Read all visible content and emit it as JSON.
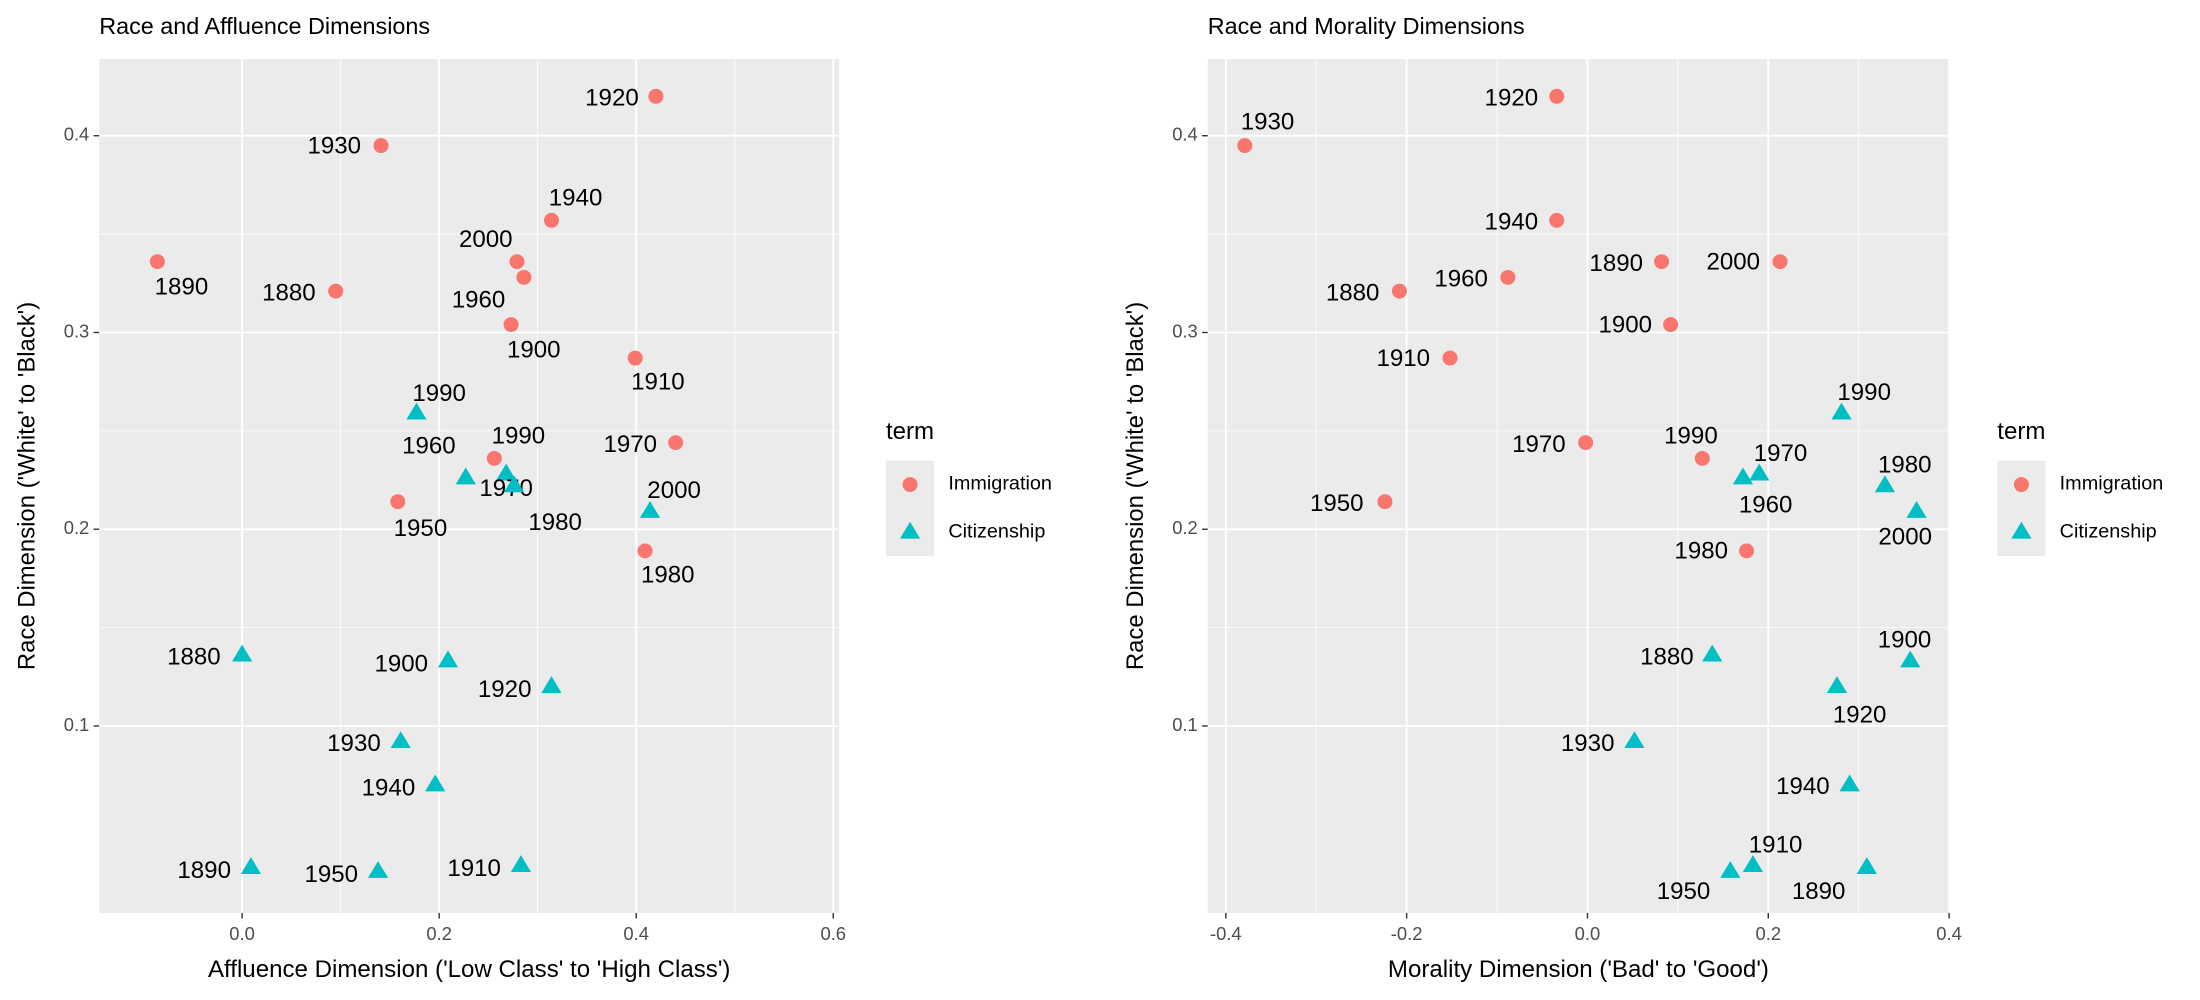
{
  "chart_data": [
    {
      "type": "scatter",
      "title": "Race and Affluence Dimensions",
      "x_label": "Affluence Dimension ('Low Class' to 'High Class')",
      "y_label": "Race Dimension ('White' to 'Black')",
      "xlim": [
        -0.145,
        0.606
      ],
      "ylim": [
        0.005,
        0.439
      ],
      "xticks": [
        {
          "value": 0,
          "label": "0.0"
        },
        0.2,
        0.4,
        0.6
      ],
      "yticks": [
        0.1,
        0.2,
        0.3,
        0.4
      ],
      "grid": true,
      "legend_title": "term",
      "series": [
        {
          "name": "Immigration",
          "color": "#F8766D",
          "marker": "circle",
          "labels": [
            "1920",
            "1930",
            "1940",
            "2000",
            "1890",
            "1880",
            "1960",
            "1900",
            "1910",
            "1970",
            "1990",
            "1950",
            "1980"
          ],
          "x": [
            0.42,
            0.141,
            0.314,
            0.279,
            -0.086,
            0.095,
            0.286,
            0.273,
            0.399,
            0.44,
            0.256,
            0.158,
            0.409
          ],
          "values": [
            0.42,
            0.395,
            0.357,
            0.336,
            0.336,
            0.321,
            0.328,
            0.304,
            0.287,
            0.244,
            0.236,
            0.214,
            0.189
          ]
        },
        {
          "name": "Citizenship",
          "color": "#00BFC4",
          "marker": "triangle",
          "labels": [
            "1990",
            "1960",
            "1970",
            "1980",
            "2000",
            "1880",
            "1900",
            "1920",
            "1930",
            "1940",
            "1890",
            "1950",
            "1910"
          ],
          "x": [
            0.177,
            0.227,
            0.268,
            0.276,
            0.414,
            0.0,
            0.209,
            0.314,
            0.161,
            0.196,
            0.009,
            0.138,
            0.283
          ],
          "values": [
            0.259,
            0.226,
            0.228,
            0.222,
            0.209,
            0.136,
            0.133,
            0.12,
            0.092,
            0.07,
            0.028,
            0.026,
            0.029
          ]
        }
      ]
    },
    {
      "type": "scatter",
      "title": "Race and Morality Dimensions",
      "x_label": "Morality Dimension ('Bad' to 'Good')",
      "y_label": "Race Dimension ('White' to 'Black')",
      "xlim": [
        -0.42,
        0.4
      ],
      "ylim": [
        0.005,
        0.439
      ],
      "xticks": [
        -0.4,
        -0.2,
        {
          "value": 0,
          "label": "0.0"
        },
        0.2,
        0.4
      ],
      "yticks": [
        0.1,
        0.2,
        0.3,
        0.4
      ],
      "grid": true,
      "legend_title": "term",
      "series": [
        {
          "name": "Immigration",
          "color": "#F8766D",
          "marker": "circle",
          "labels": [
            "1930",
            "1920",
            "1940",
            "1960",
            "1880",
            "1890",
            "2000",
            "1900",
            "1910",
            "1970",
            "1990",
            "1950",
            "1980"
          ],
          "x": [
            -0.379,
            -0.034,
            -0.034,
            -0.088,
            -0.208,
            0.082,
            0.213,
            0.092,
            -0.152,
            -0.002,
            0.127,
            -0.224,
            0.176
          ],
          "values": [
            0.395,
            0.42,
            0.357,
            0.328,
            0.321,
            0.336,
            0.336,
            0.304,
            0.287,
            0.244,
            0.236,
            0.214,
            0.189
          ]
        },
        {
          "name": "Citizenship",
          "color": "#00BFC4",
          "marker": "triangle",
          "labels": [
            "1990",
            "1970",
            "1960",
            "1980",
            "2000",
            "1900",
            "1880",
            "1920",
            "1930",
            "1940",
            "1910",
            "1950",
            "1890"
          ],
          "x": [
            0.281,
            0.19,
            0.172,
            0.329,
            0.364,
            0.357,
            0.138,
            0.276,
            0.052,
            0.29,
            0.183,
            0.158,
            0.309
          ],
          "values": [
            0.259,
            0.228,
            0.226,
            0.222,
            0.209,
            0.133,
            0.136,
            0.12,
            0.092,
            0.07,
            0.029,
            0.026,
            0.028
          ]
        }
      ]
    }
  ]
}
